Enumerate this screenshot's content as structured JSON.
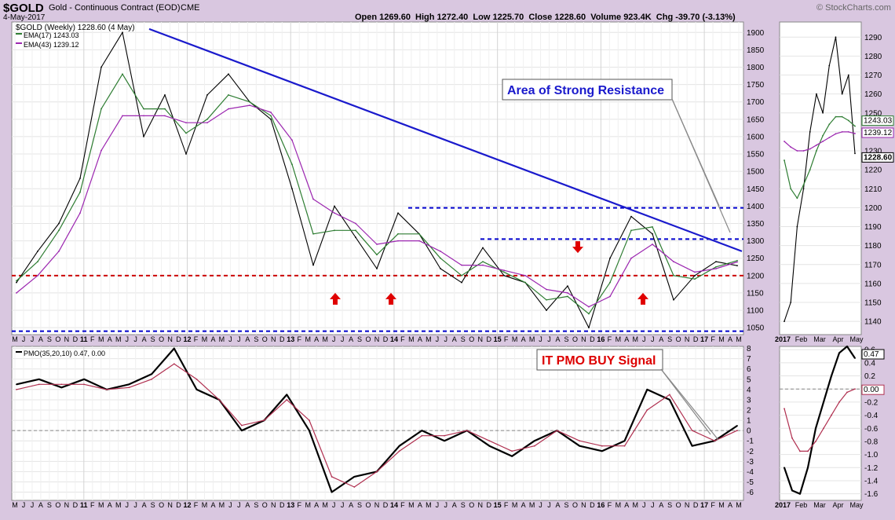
{
  "header": {
    "symbol": "$GOLD",
    "description": "Gold - Continuous Contract (EOD)",
    "exchange": "CME",
    "date": "4-May-2017",
    "ohlc": "Open 1269.60  High 1272.40  Low 1225.70  Close 1228.60  Volume 923.4K  Chg -39.70 (-3.13%)",
    "watermark": "© StockCharts.com"
  },
  "chart_data": [
    {
      "type": "line",
      "title": "$GOLD (Weekly) 1228.60 (4 May)",
      "legend": [
        "EMA(17) 1243.03",
        "EMA(43) 1239.12"
      ],
      "series": [
        {
          "name": "$GOLD (Weekly)",
          "x": [
            "2010-05",
            "2010-09",
            "2011-01",
            "2011-04",
            "2011-08",
            "2011-09",
            "2011-12",
            "2012-02",
            "2012-05",
            "2012-09",
            "2012-10",
            "2012-12",
            "2013-02",
            "2013-04",
            "2013-06",
            "2013-08",
            "2013-10",
            "2013-12",
            "2014-03",
            "2014-06",
            "2014-09",
            "2014-11",
            "2015-01",
            "2015-03",
            "2015-06",
            "2015-08",
            "2015-10",
            "2015-12",
            "2016-03",
            "2016-07",
            "2016-09",
            "2016-12",
            "2017-01",
            "2017-03",
            "2017-05"
          ],
          "values": [
            1180,
            1270,
            1350,
            1480,
            1800,
            1900,
            1600,
            1720,
            1550,
            1720,
            1780,
            1700,
            1650,
            1450,
            1230,
            1400,
            1310,
            1220,
            1380,
            1320,
            1220,
            1180,
            1280,
            1200,
            1180,
            1100,
            1170,
            1050,
            1250,
            1370,
            1320,
            1130,
            1200,
            1240,
            1228.6
          ]
        },
        {
          "name": "EMA(17)",
          "values": [
            1185,
            1240,
            1330,
            1440,
            1680,
            1780,
            1680,
            1680,
            1610,
            1650,
            1720,
            1700,
            1660,
            1520,
            1320,
            1330,
            1330,
            1260,
            1320,
            1320,
            1250,
            1200,
            1240,
            1210,
            1180,
            1130,
            1140,
            1090,
            1180,
            1330,
            1340,
            1200,
            1190,
            1225,
            1243.03
          ]
        },
        {
          "name": "EMA(43)",
          "values": [
            1150,
            1200,
            1270,
            1380,
            1560,
            1660,
            1660,
            1660,
            1640,
            1640,
            1680,
            1690,
            1670,
            1590,
            1420,
            1380,
            1350,
            1290,
            1300,
            1300,
            1270,
            1230,
            1230,
            1215,
            1200,
            1160,
            1150,
            1110,
            1140,
            1250,
            1290,
            1240,
            1210,
            1220,
            1239.12
          ]
        }
      ],
      "ylim": [
        1030,
        1930
      ],
      "y_ticks": [
        "1900",
        "1850",
        "1800",
        "1750",
        "1700",
        "1650",
        "1600",
        "1550",
        "1500",
        "1450",
        "1400",
        "1350",
        "1300",
        "1250",
        "1200",
        "1150",
        "1100",
        "1050"
      ],
      "x_ticks": [
        "M",
        "J",
        "J",
        "A",
        "S",
        "O",
        "N",
        "D",
        "11",
        "F",
        "M",
        "A",
        "M",
        "J",
        "J",
        "A",
        "S",
        "O",
        "N",
        "D",
        "12",
        "F",
        "M",
        "A",
        "M",
        "J",
        "J",
        "A",
        "S",
        "O",
        "N",
        "D",
        "13",
        "F",
        "M",
        "A",
        "M",
        "J",
        "J",
        "A",
        "S",
        "O",
        "N",
        "D",
        "14",
        "F",
        "M",
        "A",
        "M",
        "J",
        "J",
        "A",
        "S",
        "O",
        "N",
        "D",
        "15",
        "F",
        "M",
        "A",
        "M",
        "J",
        "J",
        "A",
        "S",
        "O",
        "N",
        "D",
        "16",
        "F",
        "M",
        "A",
        "M",
        "J",
        "J",
        "A",
        "S",
        "O",
        "N",
        "D",
        "17",
        "F",
        "M",
        "A",
        "M"
      ],
      "annotations": [
        "Area of Strong Resistance"
      ],
      "reference_lines": [
        1395,
        1305,
        1200,
        1040
      ],
      "grid": true
    },
    {
      "type": "line",
      "title": "PMO(35,20,10) 0.47, 0.00",
      "legend": [
        "PMO(35,20,10) 0.47, 0.00"
      ],
      "series": [
        {
          "name": "PMO",
          "values": [
            4.5,
            5.0,
            4.2,
            5.0,
            4.0,
            4.5,
            5.5,
            8.0,
            4.0,
            3.0,
            0,
            1.0,
            3.5,
            0,
            -6.0,
            -4.5,
            -4.0,
            -1.5,
            0,
            -1.0,
            0,
            -1.5,
            -2.5,
            -1.0,
            0,
            -1.5,
            -2.0,
            -1.0,
            4.0,
            3.0,
            -1.5,
            -1.0,
            0.47
          ]
        },
        {
          "name": "signal",
          "values": [
            4.0,
            4.5,
            4.5,
            4.5,
            4.0,
            4.2,
            5.0,
            6.5,
            5.0,
            3.0,
            0.5,
            1.0,
            3.0,
            1.0,
            -4.5,
            -5.5,
            -4.0,
            -2.0,
            -0.5,
            -0.5,
            0,
            -1.0,
            -2.0,
            -1.5,
            0,
            -1.0,
            -1.5,
            -1.5,
            2.0,
            3.5,
            0,
            -1.0,
            0.0
          ]
        }
      ],
      "ylim": [
        -6.8,
        8.2
      ],
      "y_ticks": [
        "8",
        "7",
        "6",
        "5",
        "4",
        "3",
        "2",
        "1",
        "0",
        "-1",
        "-2",
        "-3",
        "-4",
        "-5",
        "-6"
      ],
      "x_ticks": [
        "M",
        "J",
        "J",
        "A",
        "S",
        "O",
        "N",
        "D",
        "11",
        "F",
        "M",
        "A",
        "M",
        "J",
        "J",
        "A",
        "S",
        "O",
        "N",
        "D",
        "12",
        "F",
        "M",
        "A",
        "M",
        "J",
        "J",
        "A",
        "S",
        "O",
        "N",
        "D",
        "13",
        "F",
        "M",
        "A",
        "M",
        "J",
        "J",
        "A",
        "S",
        "O",
        "N",
        "D",
        "14",
        "F",
        "M",
        "A",
        "M",
        "J",
        "J",
        "A",
        "S",
        "O",
        "N",
        "D",
        "15",
        "F",
        "M",
        "A",
        "M",
        "J",
        "J",
        "A",
        "S",
        "O",
        "N",
        "D",
        "16",
        "F",
        "M",
        "A",
        "M",
        "J",
        "J",
        "A",
        "S",
        "O",
        "N",
        "D",
        "17",
        "F",
        "M",
        "A",
        "M"
      ],
      "annotations": [
        "IT PMO BUY Signal"
      ]
    },
    {
      "type": "line",
      "title": "",
      "series": [
        {
          "name": "price",
          "values": [
            1140,
            1150,
            1190,
            1210,
            1240,
            1260,
            1250,
            1275,
            1290,
            1260,
            1270,
            1228.6
          ]
        },
        {
          "name": "EMA(17)",
          "values": [
            1225,
            1210,
            1205,
            1212,
            1220,
            1230,
            1238,
            1244,
            1248,
            1248,
            1246,
            1243.03
          ]
        },
        {
          "name": "EMA(43)",
          "values": [
            1235,
            1232,
            1230,
            1230,
            1231,
            1233,
            1235,
            1237,
            1239,
            1240,
            1240,
            1239.12
          ]
        }
      ],
      "ylim": [
        1133,
        1298
      ],
      "y_ticks": [
        "1290",
        "1280",
        "1270",
        "1260",
        "1250",
        "1240",
        "1230",
        "1220",
        "1210",
        "1200",
        "1190",
        "1180",
        "1170",
        "1160",
        "1150",
        "1140"
      ],
      "x_ticks": [
        "2017",
        "Feb",
        "Mar",
        "Apr",
        "May"
      ],
      "value_labels": [
        "1243.03",
        "1239.12",
        "1228.60"
      ]
    },
    {
      "type": "line",
      "title": "",
      "series": [
        {
          "name": "PMO",
          "values": [
            -1.2,
            -1.55,
            -1.6,
            -1.2,
            -0.6,
            -0.2,
            0.2,
            0.55,
            0.65,
            0.47
          ]
        },
        {
          "name": "signal",
          "values": [
            -0.3,
            -0.75,
            -0.95,
            -0.95,
            -0.8,
            -0.6,
            -0.4,
            -0.2,
            -0.05,
            0.0
          ]
        }
      ],
      "ylim": [
        -1.7,
        0.65
      ],
      "y_ticks": [
        "0.6",
        "0.4",
        "0.2",
        "0.00",
        "-0.2",
        "-0.4",
        "-0.6",
        "-0.8",
        "-1.0",
        "-1.2",
        "-1.4",
        "-1.6"
      ],
      "x_ticks": [
        "2017",
        "Feb",
        "Mar",
        "Apr",
        "May"
      ],
      "value_labels": [
        "0.47",
        "0.00"
      ]
    }
  ],
  "colors": {
    "frame": "#d9c7e0",
    "panel": "#ffffff",
    "price_bars": "#000000",
    "ema17": "#2e7d32",
    "ema43": "#9c27b0",
    "trendline": "#1a1acc",
    "support_dashed": "#cc0000",
    "resistance_dashed": "#0000cc",
    "pmo": "#000000",
    "pmo_signal": "#b03050",
    "arrows": "#e00000",
    "annotation_text": "#1a1acc",
    "pmo_annotation_text": "#dd0000"
  },
  "arrows": [
    {
      "direction": "up",
      "date": "2013-06"
    },
    {
      "direction": "up",
      "date": "2013-12"
    },
    {
      "direction": "down",
      "date": "2015-10"
    },
    {
      "direction": "up",
      "date": "2016-05"
    }
  ]
}
